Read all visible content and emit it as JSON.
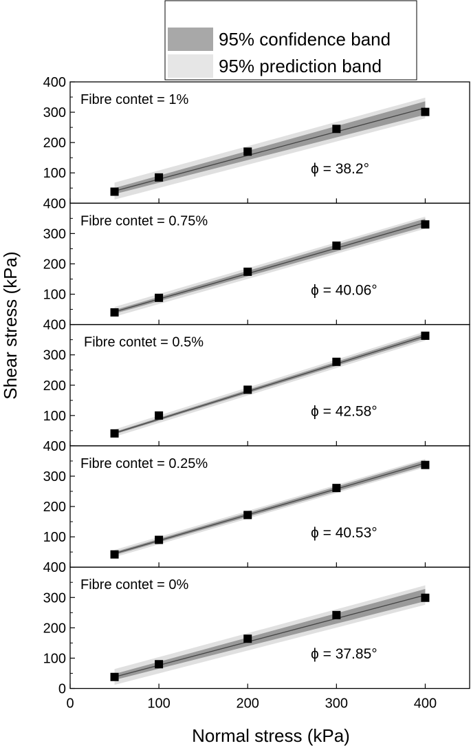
{
  "chart_data": {
    "type": "scatter",
    "xlabel": "Normal stress (kPa)",
    "ylabel": "Shear stress (kPa)",
    "xlim": [
      0,
      450
    ],
    "ylim": [
      0,
      400
    ],
    "x_ticks": [
      0,
      100,
      200,
      300,
      400
    ],
    "y_ticks": [
      100,
      200,
      300,
      400
    ],
    "bottom_panel_y_ticks": [
      0,
      100,
      200,
      300,
      400
    ],
    "legend": {
      "placement": "top-center",
      "entries": [
        {
          "label": "95% confidence band",
          "color": "#a8a8a8"
        },
        {
          "label": "95% prediction band",
          "color": "#e6e6e6"
        }
      ]
    },
    "colors": {
      "marker": "#000000",
      "fit_line": "#444444",
      "confidence_band": "#9a9a9a",
      "prediction_band": "#e0e0e0"
    },
    "panels": [
      {
        "label": "Fibre contet = 1%",
        "phi_label": "ϕ = 38.2°",
        "x": [
          50,
          100,
          200,
          300,
          400
        ],
        "y": [
          38,
          85,
          170,
          245,
          301
        ],
        "fit": {
          "y_at_50": 40,
          "y_at_400": 314
        },
        "confidence_halfwidth": [
          10,
          22
        ],
        "prediction_halfwidth": [
          28,
          34
        ]
      },
      {
        "label": "Fibre contet = 0.75%",
        "phi_label": "ϕ = 40.06°",
        "x": [
          50,
          100,
          200,
          300,
          400
        ],
        "y": [
          40,
          88,
          174,
          260,
          330
        ],
        "fit": {
          "y_at_50": 42,
          "y_at_400": 336
        },
        "confidence_halfwidth": [
          6,
          13
        ],
        "prediction_halfwidth": [
          16,
          20
        ]
      },
      {
        "label": "Fibre contet = 0.5%",
        "phi_label": "ϕ = 42.58°",
        "x": [
          50,
          100,
          200,
          300,
          400
        ],
        "y": [
          41,
          100,
          185,
          277,
          363
        ],
        "fit": {
          "y_at_50": 42,
          "y_at_400": 362
        },
        "confidence_halfwidth": [
          4,
          8
        ],
        "prediction_halfwidth": [
          12,
          15
        ]
      },
      {
        "label": "Fibre contet = 0.25%",
        "phi_label": "ϕ = 40.53°",
        "x": [
          50,
          100,
          200,
          300,
          400
        ],
        "y": [
          42,
          90,
          172,
          261,
          337
        ],
        "fit": {
          "y_at_50": 45,
          "y_at_400": 343
        },
        "confidence_halfwidth": [
          5,
          9
        ],
        "prediction_halfwidth": [
          12,
          14
        ]
      },
      {
        "label": "Fibre contet = 0%",
        "phi_label": "ϕ = 37.85°",
        "x": [
          50,
          100,
          200,
          300,
          400
        ],
        "y": [
          38,
          80,
          164,
          242,
          299
        ],
        "fit": {
          "y_at_50": 38,
          "y_at_400": 308
        },
        "confidence_halfwidth": [
          10,
          20
        ],
        "prediction_halfwidth": [
          26,
          32
        ]
      }
    ]
  }
}
